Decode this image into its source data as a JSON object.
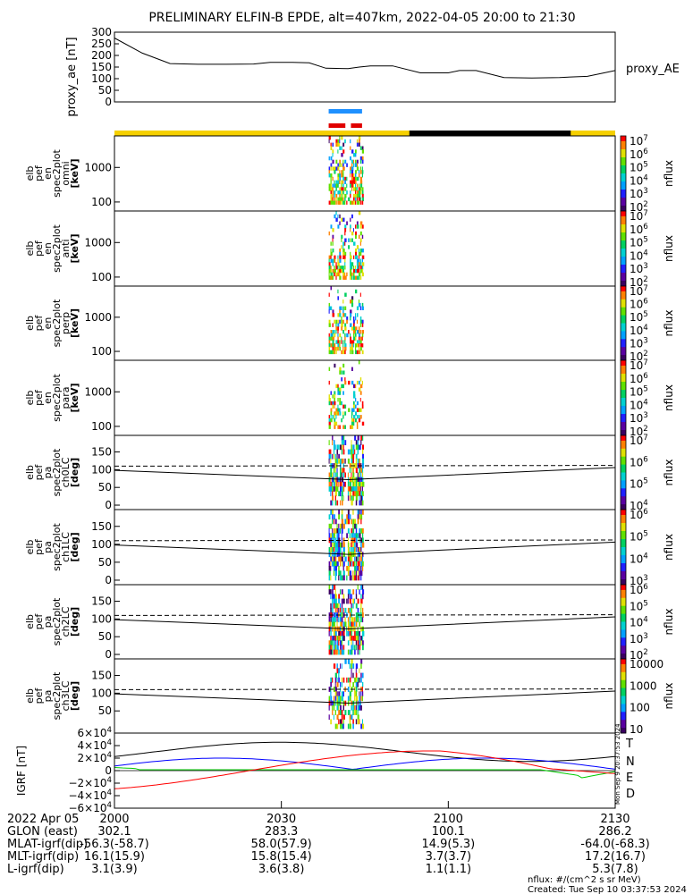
{
  "title": "PRELIMINARY ELFIN-B EPDE, alt=407km, 2022-04-05 20:00 to 21:30",
  "chart_data": [
    {
      "type": "line",
      "panel": "proxy_ae",
      "ylabel": "proxy_ae [nT]",
      "legend": "proxy_AE",
      "ylim": [
        0,
        300
      ],
      "yticks": [
        "300",
        "250",
        "200",
        "150",
        "100",
        "50",
        "0"
      ],
      "x_minutes": [
        0,
        5,
        10,
        15,
        20,
        25,
        28,
        32,
        35,
        38,
        42,
        44,
        46,
        50,
        55,
        60,
        62,
        65,
        70,
        75,
        80,
        83,
        85,
        88,
        90
      ],
      "values": [
        275,
        210,
        165,
        162,
        162,
        163,
        170,
        170,
        168,
        145,
        143,
        150,
        155,
        155,
        125,
        125,
        135,
        135,
        105,
        103,
        105,
        108,
        110,
        125,
        135
      ]
    },
    {
      "type": "heatmap",
      "panel": "omni",
      "ylabel": [
        "elb",
        "pef",
        "en",
        "spec2plot",
        "omni",
        "[keV]"
      ],
      "yticks": [
        "1000",
        "100"
      ],
      "cbar": {
        "label": "nflux",
        "ticks": [
          "10^7",
          "10^6",
          "10^5",
          "10^4",
          "10^3",
          "10^2"
        ]
      }
    },
    {
      "type": "heatmap",
      "panel": "anti",
      "ylabel": [
        "elb",
        "pef",
        "en",
        "spec2plot",
        "anti",
        "[keV]"
      ],
      "yticks": [
        "1000",
        "100"
      ],
      "cbar": {
        "label": "nflux",
        "ticks": [
          "10^7",
          "10^6",
          "10^5",
          "10^4",
          "10^3",
          "10^2"
        ]
      }
    },
    {
      "type": "heatmap",
      "panel": "perp",
      "ylabel": [
        "elb",
        "pef",
        "en",
        "spec2plot",
        "perp",
        "[keV]"
      ],
      "yticks": [
        "1000",
        "100"
      ],
      "cbar": {
        "label": "nflux",
        "ticks": [
          "10^7",
          "10^6",
          "10^5",
          "10^4",
          "10^3",
          "10^2"
        ]
      }
    },
    {
      "type": "heatmap",
      "panel": "para",
      "ylabel": [
        "elb",
        "pef",
        "en",
        "spec2plot",
        "para",
        "[keV]"
      ],
      "yticks": [
        "1000",
        "100"
      ],
      "cbar": {
        "label": "nflux",
        "ticks": [
          "10^7",
          "10^6",
          "10^5",
          "10^4",
          "10^3",
          "10^2"
        ]
      }
    },
    {
      "type": "heatmap",
      "panel": "ch0LC",
      "ylabel": [
        "elb",
        "pef",
        "pa",
        "spec2plot",
        "ch0LC",
        "[deg]"
      ],
      "yticks": [
        "150",
        "100",
        "50",
        "0"
      ],
      "cbar": {
        "label": "nflux",
        "ticks": [
          "10^7",
          "10^6",
          "10^5",
          "10^4"
        ]
      }
    },
    {
      "type": "heatmap",
      "panel": "ch1LC",
      "ylabel": [
        "elb",
        "pef",
        "pa",
        "spec2plot",
        "ch1LC",
        "[deg]"
      ],
      "yticks": [
        "150",
        "100",
        "50",
        "0"
      ],
      "cbar": {
        "label": "nflux",
        "ticks": [
          "10^6",
          "10^5",
          "10^4",
          "10^3"
        ]
      }
    },
    {
      "type": "heatmap",
      "panel": "ch2LC",
      "ylabel": [
        "elb",
        "pef",
        "pa",
        "spec2plot",
        "ch2LC",
        "[deg]"
      ],
      "yticks": [
        "150",
        "100",
        "50",
        "0"
      ],
      "cbar": {
        "label": "nflux",
        "ticks": [
          "10^6",
          "10^5",
          "10^4",
          "10^3",
          "10^2"
        ]
      }
    },
    {
      "type": "heatmap",
      "panel": "ch3LC",
      "ylabel": [
        "elb",
        "pef",
        "pa",
        "spec2plot",
        "ch3LC",
        "[deg]"
      ],
      "yticks": [
        "150",
        "100",
        "50"
      ],
      "cbar": {
        "label": "nflux",
        "ticks": [
          "10000",
          "1000",
          "100",
          "10"
        ]
      }
    },
    {
      "type": "line",
      "panel": "IGRF",
      "ylabel": "IGRF [nT]",
      "ylim": [
        -60000,
        60000
      ],
      "yticks": [
        "6×10^4",
        "4×10^4",
        "2×10^4",
        "0",
        "−2×10^4",
        "−4×10^4",
        "−6×10^4"
      ],
      "series": [
        {
          "name": "T",
          "color": "#000000"
        },
        {
          "name": "N",
          "color": "#0000ff"
        },
        {
          "name": "E",
          "color": "#00cc00"
        },
        {
          "name": "D",
          "color": "#ff0000"
        }
      ]
    }
  ],
  "xaxis": {
    "date": "2022 Apr 05",
    "ticks": [
      "2000",
      "2030",
      "2100",
      "2130"
    ],
    "rows": [
      {
        "label": "GLON (east)",
        "values": [
          "302.1",
          "283.3",
          "100.1",
          "286.2"
        ]
      },
      {
        "label": "MLAT-igrf(dip)",
        "values": [
          "-56.3(-58.7)",
          "58.0(57.9)",
          "14.9(5.3)",
          "-64.0(-68.3)"
        ]
      },
      {
        "label": "MLT-igrf(dip)",
        "values": [
          "16.1(15.9)",
          "15.8(15.4)",
          "3.7(3.7)",
          "17.2(16.7)"
        ]
      },
      {
        "label": "L-igrf(dip)",
        "values": [
          "3.1(3.9)",
          "3.6(3.8)",
          "1.1(1.1)",
          "5.3(7.8)"
        ]
      }
    ]
  },
  "footer": {
    "units": "nflux: #/(cm^2 s sr MeV)",
    "created": "Created: Tue Sep 10 03:37:53 2024",
    "side_stamp": "Mon Sep 9 20:37:53 2024"
  },
  "colors": {
    "sunlit": "#f5d000",
    "shadow": "#000000",
    "bar_blue": "#1e90ff",
    "bar_red": "#e00000"
  }
}
